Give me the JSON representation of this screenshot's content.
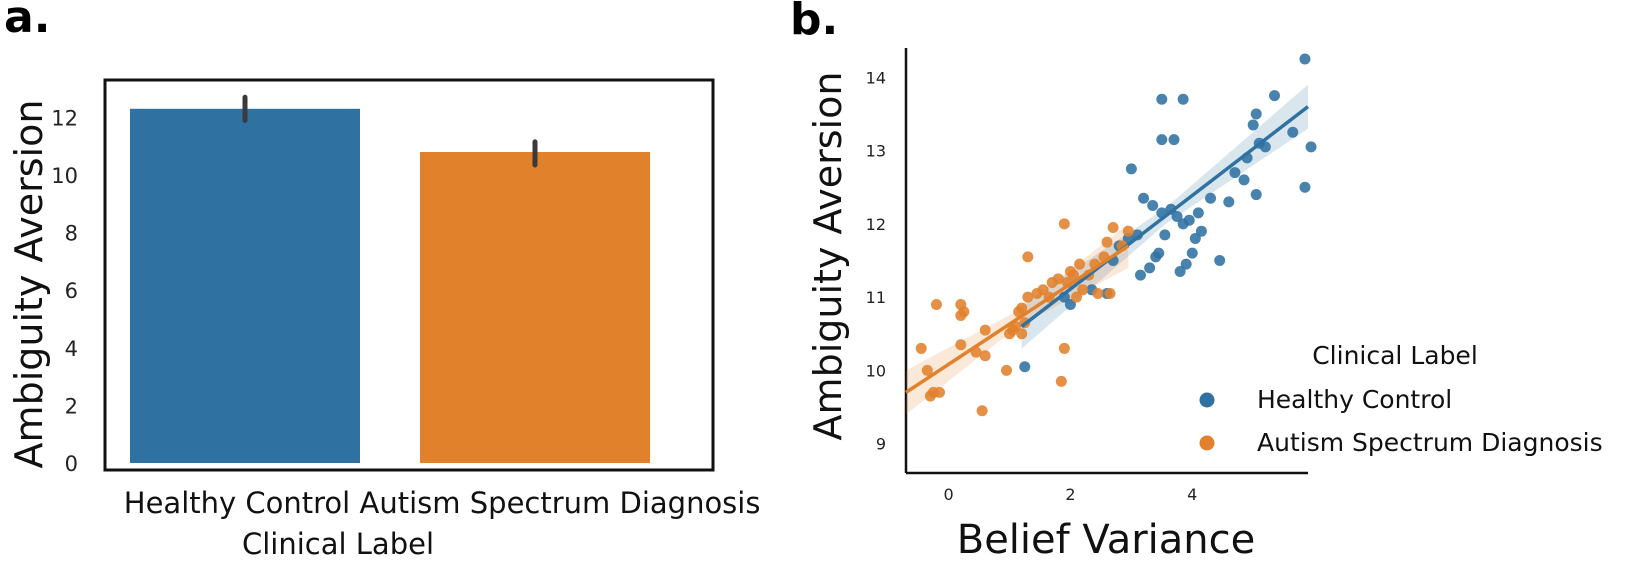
{
  "panels": {
    "a": {
      "label": "a."
    },
    "b": {
      "label": "b."
    }
  },
  "colors": {
    "healthy": "#2f72a2",
    "autism": "#e1812c",
    "errorbar": "#3a3a3a"
  },
  "chart_data": [
    {
      "panel": "a.",
      "type": "bar",
      "categories": [
        "Healthy Control",
        "Autism Spectrum Diagnosis"
      ],
      "values": [
        12.3,
        10.8
      ],
      "errors": [
        [
          11.9,
          12.7
        ],
        [
          10.35,
          11.15
        ]
      ],
      "xlabel": "Clinical Label",
      "ylabel": "Ambiguity Aversion",
      "ylim": [
        0,
        13.3
      ],
      "yticks": [
        0,
        2,
        4,
        6,
        8,
        10,
        12
      ],
      "grid": false
    },
    {
      "panel": "b.",
      "type": "scatter",
      "xlabel": "Belief Variance",
      "ylabel": "Ambiguity Aversion",
      "xlim": [
        -0.7,
        5.9
      ],
      "ylim": [
        8.6,
        14.4
      ],
      "xticks": [
        0,
        2,
        4
      ],
      "yticks": [
        9,
        10,
        11,
        12,
        13,
        14
      ],
      "grid": false,
      "legend": {
        "title": "Clinical Label",
        "position": "right",
        "entries": [
          "Healthy Control",
          "Autism Spectrum Diagnosis"
        ]
      },
      "series": [
        {
          "name": "Healthy Control",
          "color": "#2f72a2",
          "points": [
            [
              1.25,
              10.05
            ],
            [
              1.9,
              11.0
            ],
            [
              2.0,
              10.9
            ],
            [
              2.35,
              11.1
            ],
            [
              2.6,
              11.05
            ],
            [
              2.7,
              11.5
            ],
            [
              2.8,
              11.7
            ],
            [
              2.95,
              11.8
            ],
            [
              3.0,
              12.75
            ],
            [
              3.1,
              11.85
            ],
            [
              3.15,
              11.3
            ],
            [
              3.2,
              12.35
            ],
            [
              3.3,
              11.4
            ],
            [
              3.35,
              12.25
            ],
            [
              3.4,
              11.55
            ],
            [
              3.45,
              11.6
            ],
            [
              3.5,
              12.15
            ],
            [
              3.5,
              13.15
            ],
            [
              3.55,
              11.85
            ],
            [
              3.65,
              12.2
            ],
            [
              3.7,
              13.15
            ],
            [
              3.75,
              12.1
            ],
            [
              3.8,
              11.35
            ],
            [
              3.85,
              12.0
            ],
            [
              3.9,
              11.45
            ],
            [
              3.95,
              12.05
            ],
            [
              4.0,
              11.6
            ],
            [
              4.05,
              11.8
            ],
            [
              4.1,
              12.15
            ],
            [
              4.15,
              11.9
            ],
            [
              4.3,
              12.35
            ],
            [
              4.45,
              11.5
            ],
            [
              4.6,
              12.3
            ],
            [
              4.7,
              12.7
            ],
            [
              4.85,
              12.6
            ],
            [
              4.9,
              12.9
            ],
            [
              5.0,
              13.35
            ],
            [
              5.05,
              12.4
            ],
            [
              5.1,
              13.1
            ],
            [
              5.05,
              13.5
            ],
            [
              5.2,
              13.05
            ],
            [
              5.35,
              13.75
            ],
            [
              5.65,
              13.25
            ],
            [
              5.85,
              12.5
            ],
            [
              5.95,
              13.05
            ],
            [
              5.85,
              14.25
            ],
            [
              3.5,
              13.7
            ],
            [
              3.85,
              13.7
            ]
          ],
          "fit": [
            [
              1.2,
              10.6
            ],
            [
              5.9,
              13.6
            ]
          ]
        },
        {
          "name": "Autism Spectrum Diagnosis",
          "color": "#e1812c",
          "points": [
            [
              -0.45,
              10.3
            ],
            [
              -0.35,
              10.0
            ],
            [
              -0.3,
              9.65
            ],
            [
              -0.25,
              9.7
            ],
            [
              -0.2,
              10.9
            ],
            [
              -0.15,
              9.7
            ],
            [
              0.2,
              10.35
            ],
            [
              0.2,
              10.9
            ],
            [
              0.2,
              10.75
            ],
            [
              0.25,
              10.8
            ],
            [
              0.45,
              10.25
            ],
            [
              0.55,
              9.45
            ],
            [
              0.6,
              10.55
            ],
            [
              0.6,
              10.2
            ],
            [
              0.95,
              10.0
            ],
            [
              1.0,
              10.5
            ],
            [
              1.05,
              10.55
            ],
            [
              1.1,
              10.6
            ],
            [
              1.15,
              10.8
            ],
            [
              1.2,
              10.85
            ],
            [
              1.2,
              10.5
            ],
            [
              1.25,
              10.65
            ],
            [
              1.3,
              11.0
            ],
            [
              1.45,
              11.05
            ],
            [
              1.55,
              11.1
            ],
            [
              1.65,
              11.0
            ],
            [
              1.7,
              11.2
            ],
            [
              1.8,
              11.25
            ],
            [
              1.85,
              9.85
            ],
            [
              1.9,
              10.3
            ],
            [
              1.95,
              11.2
            ],
            [
              1.9,
              12.0
            ],
            [
              2.0,
              11.35
            ],
            [
              2.05,
              11.3
            ],
            [
              2.1,
              11.0
            ],
            [
              2.15,
              11.45
            ],
            [
              2.2,
              11.1
            ],
            [
              2.3,
              11.3
            ],
            [
              2.4,
              11.45
            ],
            [
              2.45,
              11.05
            ],
            [
              2.55,
              11.55
            ],
            [
              2.6,
              11.75
            ],
            [
              2.65,
              11.05
            ],
            [
              2.7,
              11.95
            ],
            [
              2.85,
              11.7
            ],
            [
              2.95,
              11.9
            ],
            [
              1.3,
              11.55
            ]
          ],
          "fit": [
            [
              -0.7,
              9.7
            ],
            [
              2.95,
              11.7
            ]
          ]
        }
      ]
    }
  ]
}
